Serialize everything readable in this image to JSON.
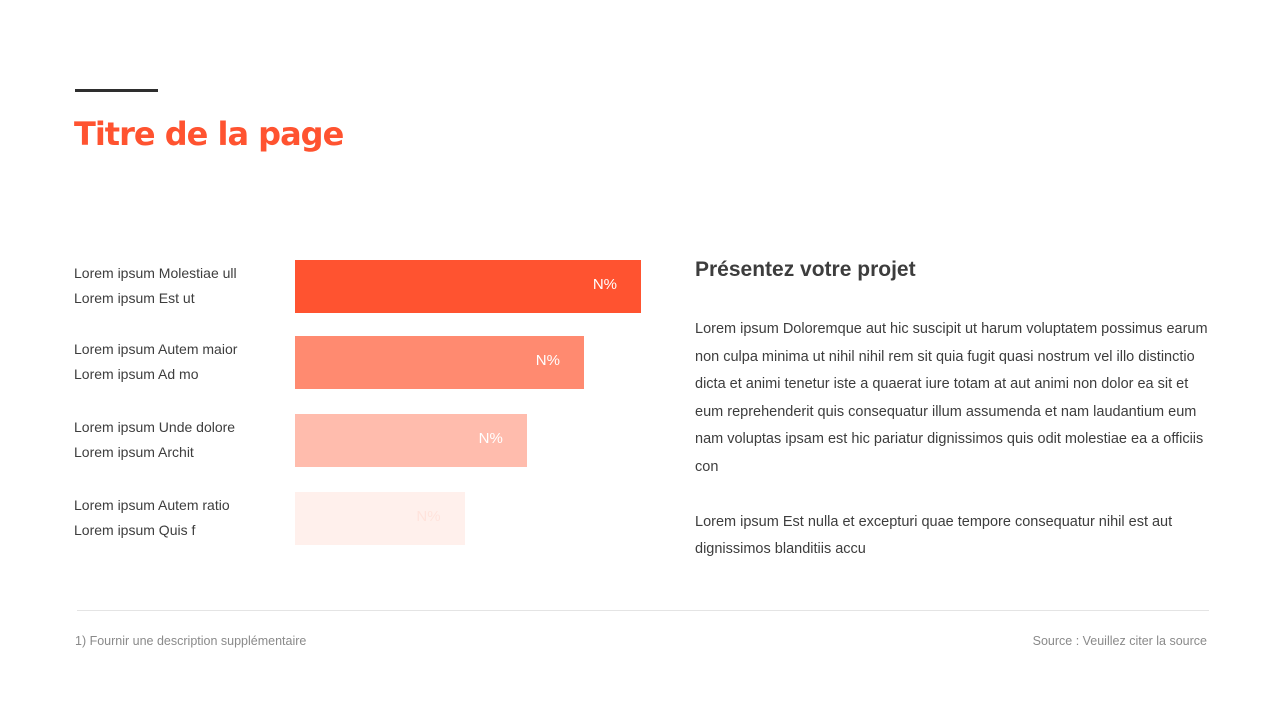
{
  "page": {
    "title": "Titre de la page",
    "title_color": "#ff5330",
    "footnote": "1) Fournir une description supplémentaire",
    "source": "Source : Veuillez citer la source"
  },
  "panel": {
    "heading": "Présentez votre projet",
    "paragraph1": "Lorem ipsum Doloremque aut hic suscipit ut harum voluptatem possimus earum non culpa minima ut nihil nihil rem sit quia fugit quasi nostrum vel illo distinctio dicta et animi tenetur iste a quaerat iure totam at aut animi non dolor ea sit et eum reprehenderit quis consequatur illum assumenda et nam laudantium eum nam voluptas ipsam est hic pariatur dignissimos quis odit molestiae ea a officiis con",
    "paragraph2": "Lorem ipsum Est nulla et excepturi quae tempore consequatur nihil est aut dignissimos blanditiis accu"
  },
  "chart_data": {
    "type": "bar",
    "orientation": "horizontal",
    "title": "",
    "xlabel": "",
    "ylabel": "",
    "grid": false,
    "legend": "none",
    "categories": [
      [
        "Lorem ipsum Molestiae ull",
        "Lorem ipsum Est ut"
      ],
      [
        "Lorem ipsum Autem maior",
        "Lorem ipsum Ad mo"
      ],
      [
        "Lorem ipsum Unde dolore",
        "Lorem ipsum Archit"
      ],
      [
        "Lorem ipsum Autem ratio",
        "Lorem ipsum Quis f"
      ]
    ],
    "values": [
      100,
      83.5,
      67,
      49
    ],
    "value_labels": [
      "N%",
      "N%",
      "N%",
      "N%"
    ],
    "xlim": [
      0,
      100
    ],
    "colors": [
      "#ff5330",
      "#ff8a70",
      "#ffbcad",
      "#fff0ec"
    ]
  }
}
